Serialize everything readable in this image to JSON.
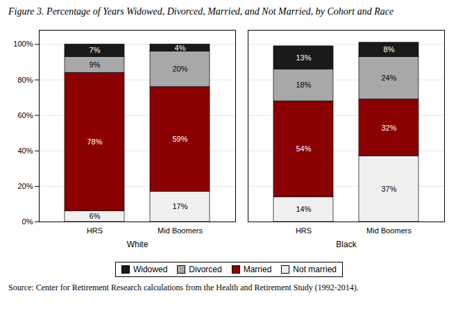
{
  "chart_data": {
    "type": "bar",
    "stacked": true,
    "data_labels": true,
    "title": "Figure 3. Percentage of Years Widowed, Divorced, Married, and Not Married, by Cohort and Race",
    "caption": "Source: Center for Retirement Research calculations from the Health and Retirement Study (1992-2014).",
    "categories": [
      "HRS",
      "Mid Boomers",
      "HRS",
      "Mid Boomers"
    ],
    "category_groups": [
      "White",
      "White",
      "Black",
      "Black"
    ],
    "series": [
      {
        "name": "Not married",
        "color": "#f0f0f0",
        "values": [
          6,
          17,
          14,
          37
        ],
        "value_labels": [
          "6%",
          "17%",
          "14%",
          "37%"
        ]
      },
      {
        "name": "Married",
        "color": "#8b0000",
        "values": [
          78,
          59,
          54,
          32
        ],
        "value_labels": [
          "78%",
          "59%",
          "54%",
          "32%"
        ]
      },
      {
        "name": "Divorced",
        "color": "#a8a8a8",
        "values": [
          9,
          20,
          18,
          24
        ],
        "value_labels": [
          "9%",
          "20%",
          "18%",
          "24%"
        ]
      },
      {
        "name": "Widowed",
        "color": "#1a1a1a",
        "values": [
          7,
          4,
          13,
          8
        ],
        "value_labels": [
          "7%",
          "4%",
          "13%",
          "8%"
        ]
      }
    ],
    "ylim": [
      0,
      108
    ],
    "yticks": [
      {
        "value": 0,
        "label": "0%"
      },
      {
        "value": 20,
        "label": "20%"
      },
      {
        "value": 40,
        "label": "40%"
      },
      {
        "value": 60,
        "label": "60%"
      },
      {
        "value": 80,
        "label": "80%"
      },
      {
        "value": 100,
        "label": "100%"
      }
    ],
    "grid": true,
    "legend": "bottom"
  }
}
